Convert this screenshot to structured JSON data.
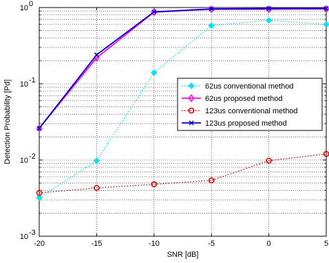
{
  "chart_data": {
    "type": "line",
    "xlabel": "SNR [dB]",
    "ylabel": "Detection Probability [Pd]",
    "x": [
      -20,
      -15,
      -10,
      -5,
      0,
      5
    ],
    "xlim": [
      -20,
      5
    ],
    "ylim": [
      0.001,
      1
    ],
    "yscale": "log",
    "grid": true,
    "legend_position": "center-right",
    "x_ticks": [
      {
        "value": -20,
        "label": "-20"
      },
      {
        "value": -15,
        "label": "-15"
      },
      {
        "value": -10,
        "label": "-10"
      },
      {
        "value": -5,
        "label": "-5"
      },
      {
        "value": 0,
        "label": "0"
      },
      {
        "value": 5,
        "label": "5"
      }
    ],
    "y_ticks": [
      {
        "value": 0.001,
        "base": "10",
        "exp": "-3"
      },
      {
        "value": 0.01,
        "base": "10",
        "exp": "-2"
      },
      {
        "value": 0.1,
        "base": "10",
        "exp": "-1"
      },
      {
        "value": 1,
        "base": "10",
        "exp": "0"
      }
    ],
    "series": [
      {
        "name": "62us conventional method",
        "color": "#00e5ee",
        "dash": "dotted",
        "marker": "filled-diamond",
        "values": [
          0.0032,
          0.0098,
          0.14,
          0.58,
          0.68,
          0.6
        ]
      },
      {
        "name": "62us proposed method",
        "color": "#ff00ff",
        "dash": "solid",
        "marker": "open-diamond",
        "values": [
          0.026,
          0.22,
          0.87,
          0.95,
          0.95,
          0.96
        ]
      },
      {
        "name": "123us conventional method",
        "color": "#dd0000",
        "dash": "dotted",
        "marker": "open-circle",
        "values": [
          0.0037,
          0.0043,
          0.0048,
          0.0054,
          0.0098,
          0.012
        ]
      },
      {
        "name": "123us proposed method",
        "color": "#0000cc",
        "dash": "solid",
        "marker": "x",
        "values": [
          0.026,
          0.24,
          0.88,
          0.96,
          0.97,
          0.97
        ]
      }
    ]
  }
}
